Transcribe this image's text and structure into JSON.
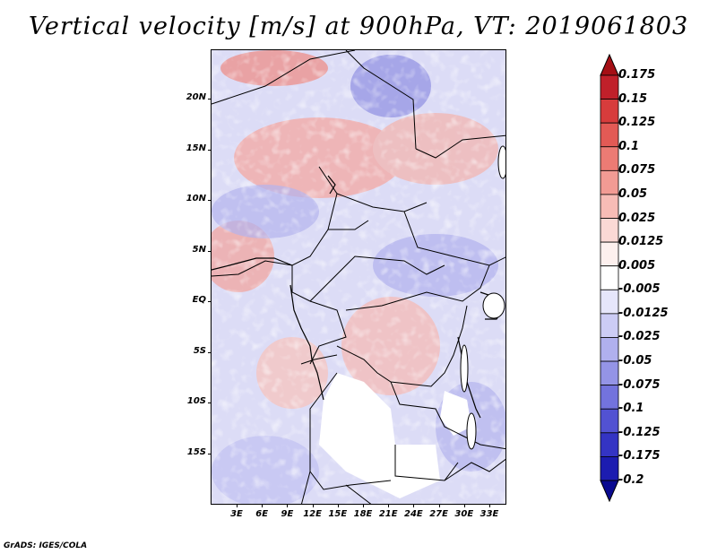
{
  "title": "Vertical velocity [m/s] at 900hPa, VT: 2019061803",
  "credit": "GrADS: IGES/COLA",
  "map": {
    "lat_labels": [
      "20N",
      "15N",
      "10N",
      "5N",
      "EQ",
      "5S",
      "10S",
      "15S"
    ],
    "lon_labels": [
      "3E",
      "6E",
      "9E",
      "12E",
      "15E",
      "18E",
      "21E",
      "24E",
      "27E",
      "30E",
      "33E"
    ]
  },
  "colorbar": {
    "labels": [
      "0.175",
      "0.15",
      "0.125",
      "0.1",
      "0.075",
      "0.05",
      "0.025",
      "0.0125",
      "0.005",
      "-0.005",
      "-0.0125",
      "-0.025",
      "-0.05",
      "-0.075",
      "-0.1",
      "-0.125",
      "-0.175",
      "-0.2"
    ],
    "colors": [
      "#a50f15",
      "#c0202a",
      "#d73c3c",
      "#e35a55",
      "#ec7b74",
      "#f29b94",
      "#f7bcb6",
      "#fbd9d5",
      "#fdf0ee",
      "#ffffff",
      "#e6e6fb",
      "#ccccf5",
      "#b0b0ee",
      "#9494e6",
      "#7373dd",
      "#5252d2",
      "#3434c4",
      "#1c1cb0",
      "#0a0a90"
    ]
  }
}
